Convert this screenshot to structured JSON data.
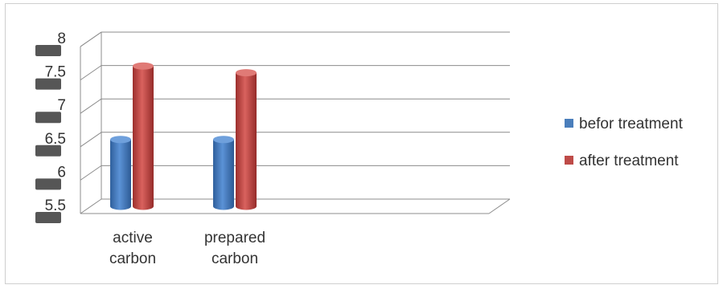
{
  "chart_data": {
    "type": "bar",
    "style": "3d-cylinder",
    "categories": [
      [
        "active",
        "carbon"
      ],
      [
        "prepared",
        "carbon"
      ]
    ],
    "series": [
      {
        "name": "befor treatment",
        "color": "#4a7ebb",
        "values": [
          6.5,
          6.5
        ]
      },
      {
        "name": "after treatment",
        "color": "#be4b48",
        "values": [
          7.6,
          7.5
        ]
      }
    ],
    "y_ticks": [
      "5.5",
      "6",
      "6.5",
      "7",
      "7.5",
      "8"
    ],
    "ylim": [
      5.5,
      8
    ],
    "grid": true,
    "legend": "right"
  }
}
